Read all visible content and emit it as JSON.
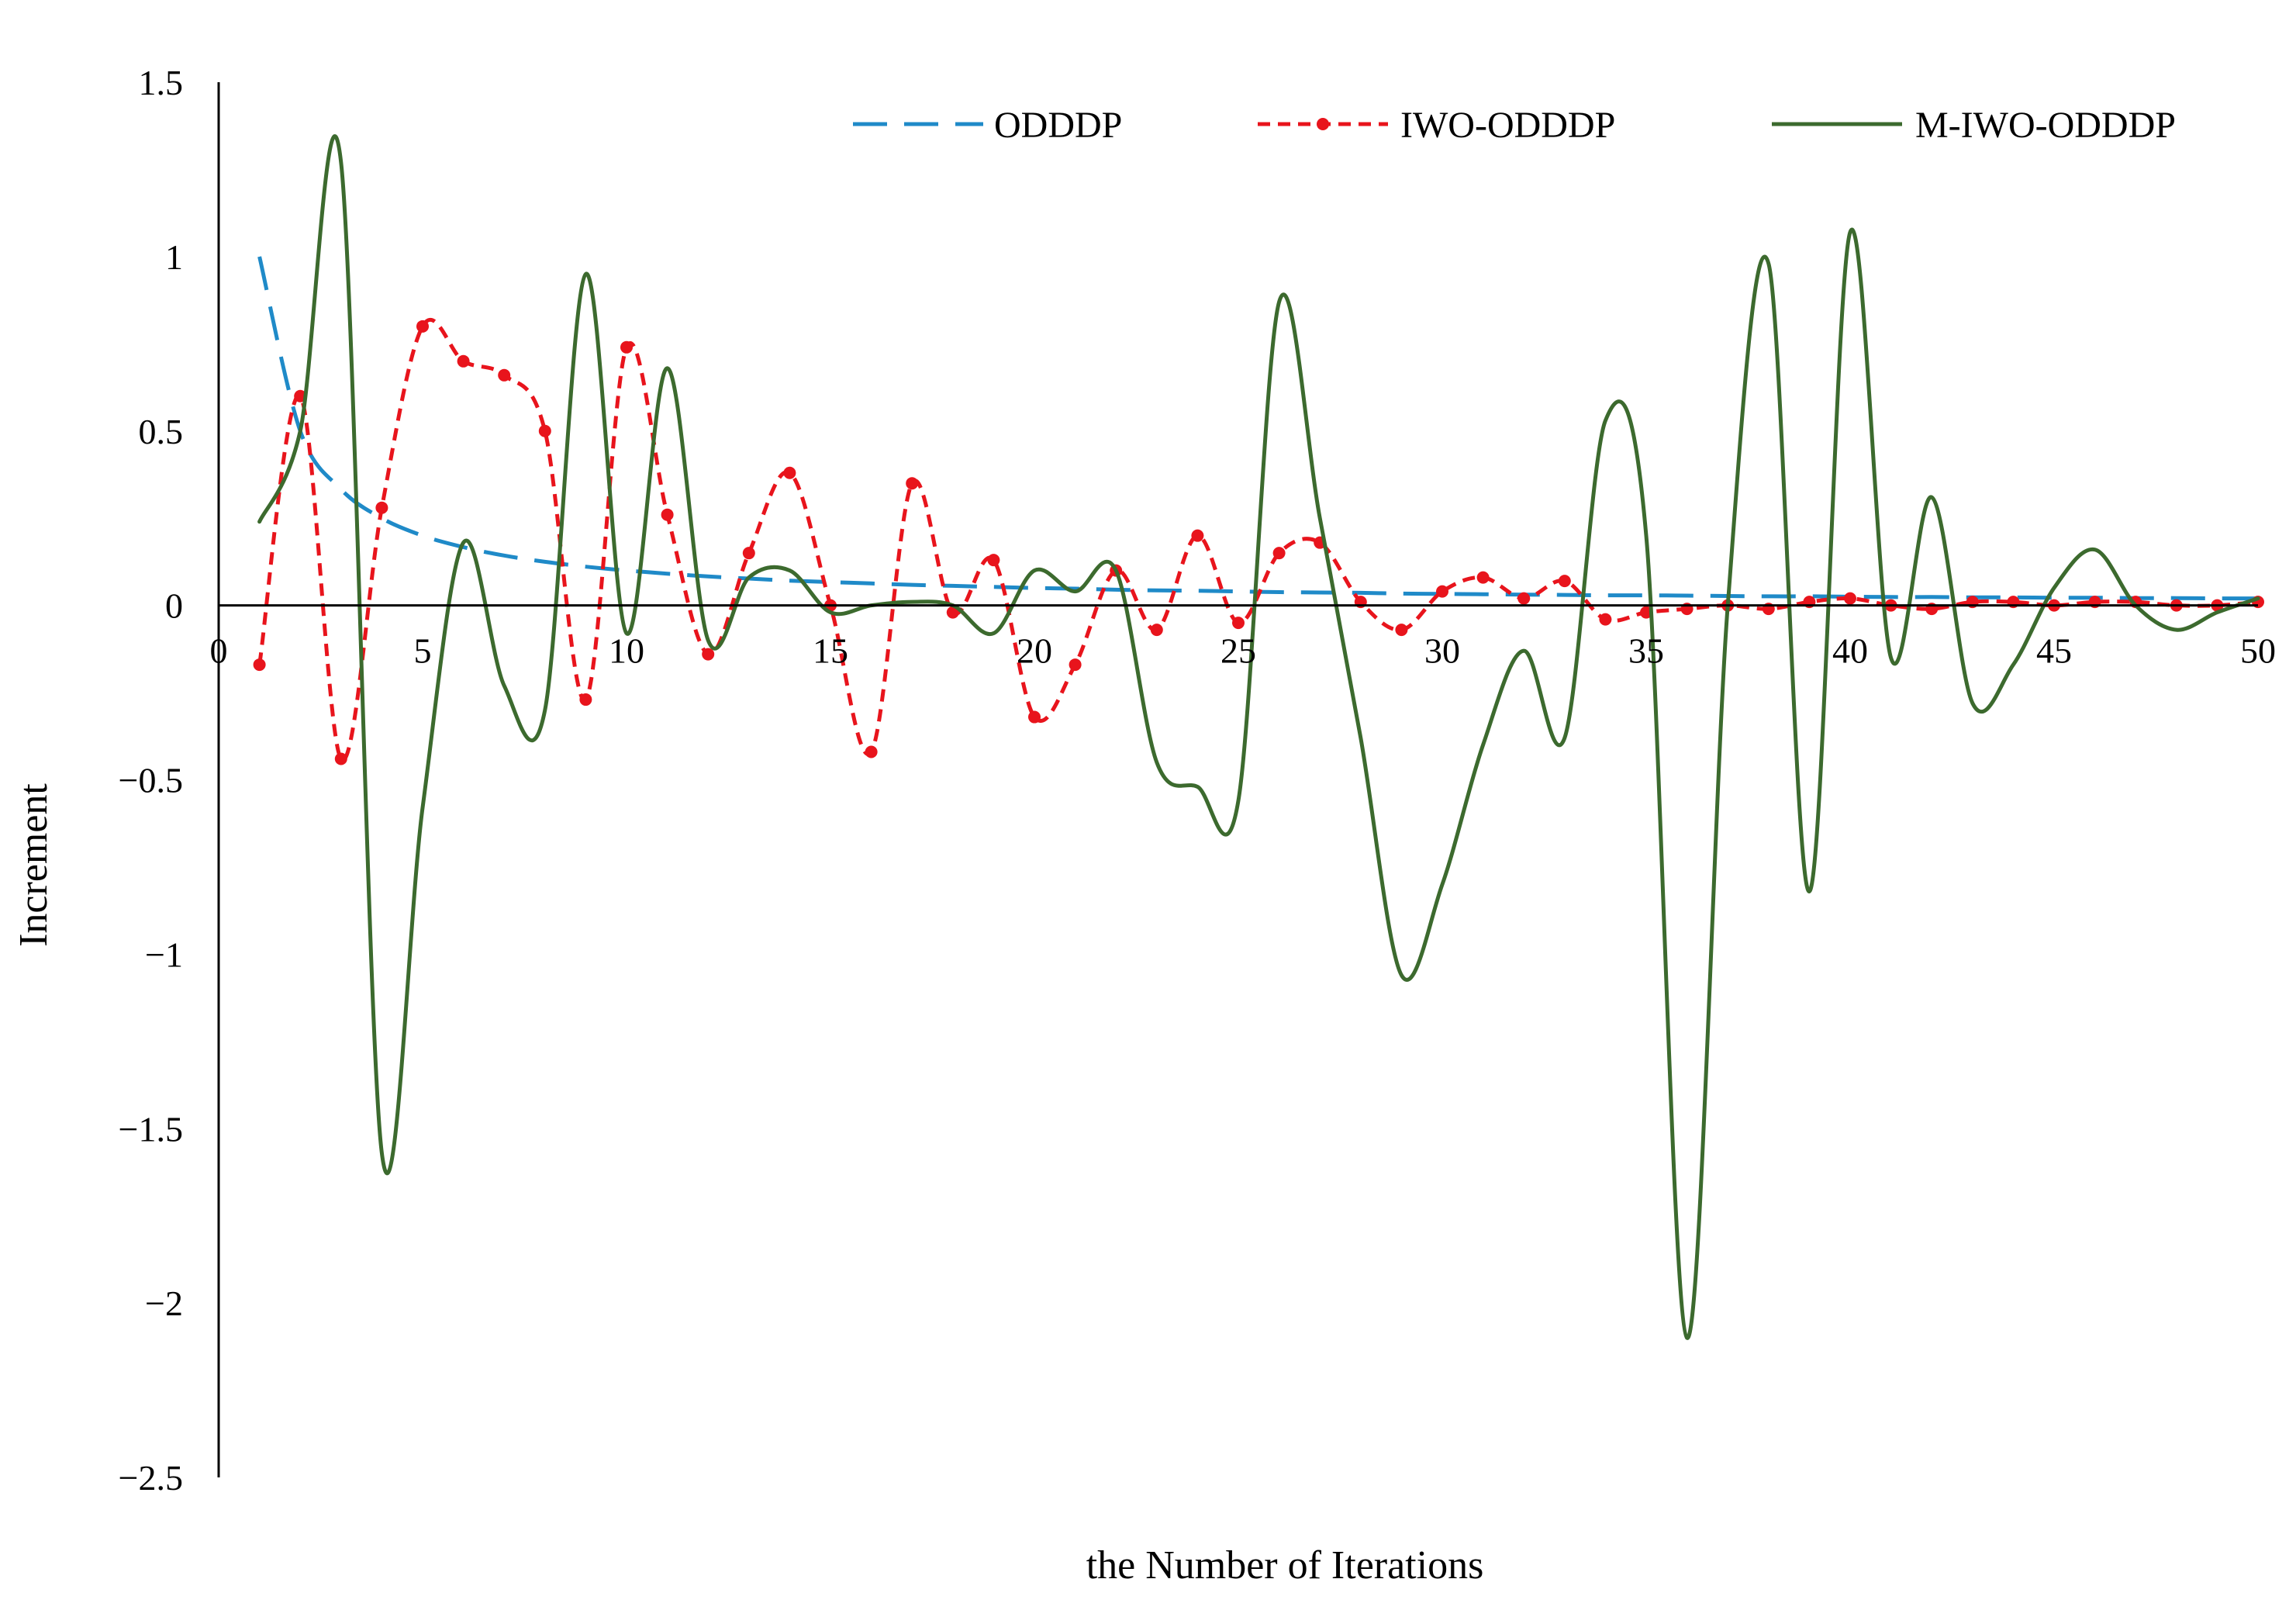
{
  "chart_data": {
    "type": "line",
    "title": "",
    "xlabel": "the Number of Iterations",
    "ylabel": "Increment",
    "xlim": [
      0,
      50
    ],
    "ylim": [
      -2.5,
      1.5
    ],
    "x_ticks": [
      0,
      5,
      10,
      15,
      20,
      25,
      30,
      35,
      40,
      45,
      50
    ],
    "x_tick_labels": [
      "0",
      "5",
      "10",
      "15",
      "20",
      "25",
      "30",
      "35",
      "40",
      "45",
      "50"
    ],
    "y_ticks": [
      1.5,
      1,
      0.5,
      0,
      -0.5,
      -1,
      -1.5,
      -2,
      -2.5
    ],
    "y_tick_labels": [
      "1.5",
      "1",
      "0.5",
      "0",
      "−0.5",
      "−1",
      "−1.5",
      "−2",
      "−2.5"
    ],
    "grid": false,
    "legend_position": "top",
    "x": [
      1,
      2,
      3,
      4,
      5,
      6,
      7,
      8,
      9,
      10,
      11,
      12,
      13,
      14,
      15,
      16,
      17,
      18,
      19,
      20,
      21,
      22,
      23,
      24,
      25,
      26,
      27,
      28,
      29,
      30,
      31,
      32,
      33,
      34,
      35,
      36,
      37,
      38,
      39,
      40,
      41,
      42,
      43,
      44,
      45,
      46,
      47,
      48,
      49,
      50
    ],
    "series": [
      {
        "name": "ODDDP",
        "color": "#1f8ac8",
        "style": "dashed",
        "values": [
          1.0,
          0.5,
          0.333,
          0.25,
          0.2,
          0.167,
          0.143,
          0.125,
          0.111,
          0.1,
          0.091,
          0.083,
          0.077,
          0.071,
          0.067,
          0.063,
          0.059,
          0.056,
          0.053,
          0.05,
          0.048,
          0.045,
          0.043,
          0.042,
          0.04,
          0.038,
          0.037,
          0.036,
          0.034,
          0.033,
          0.032,
          0.031,
          0.03,
          0.029,
          0.029,
          0.028,
          0.027,
          0.026,
          0.026,
          0.025,
          0.024,
          0.024,
          0.023,
          0.023,
          0.022,
          0.022,
          0.021,
          0.021,
          0.02,
          0.02
        ]
      },
      {
        "name": "IWO-ODDDP",
        "color": "#e8141c",
        "style": "dotted",
        "values": [
          -0.17,
          0.6,
          -0.44,
          0.28,
          0.8,
          0.7,
          0.66,
          0.5,
          -0.27,
          0.74,
          0.26,
          -0.14,
          0.15,
          0.38,
          0.0,
          -0.42,
          0.35,
          -0.02,
          0.13,
          -0.32,
          -0.17,
          0.1,
          -0.07,
          0.2,
          -0.05,
          0.15,
          0.18,
          0.01,
          -0.07,
          0.04,
          0.08,
          0.02,
          0.07,
          -0.04,
          -0.02,
          -0.01,
          0.0,
          -0.01,
          0.01,
          0.02,
          0.0,
          -0.01,
          0.01,
          0.01,
          0.0,
          0.01,
          0.01,
          0.0,
          0.0,
          0.01
        ]
      },
      {
        "name": "M-IWO-ODDDP",
        "color": "#3c6a2e",
        "style": "solid",
        "values": [
          0.24,
          0.5,
          1.27,
          -1.57,
          -0.58,
          0.18,
          -0.23,
          -0.3,
          0.95,
          -0.08,
          0.68,
          -0.1,
          0.08,
          0.1,
          -0.02,
          0.0,
          0.01,
          0.0,
          -0.08,
          0.1,
          0.04,
          0.1,
          -0.45,
          -0.52,
          -0.56,
          0.87,
          0.25,
          -0.38,
          -1.06,
          -0.8,
          -0.4,
          -0.13,
          -0.38,
          0.53,
          0.2,
          -2.1,
          0.0,
          0.98,
          -0.82,
          1.07,
          -0.15,
          0.31,
          -0.28,
          -0.17,
          0.05,
          0.16,
          0.0,
          -0.07,
          -0.02,
          0.02
        ]
      }
    ]
  }
}
